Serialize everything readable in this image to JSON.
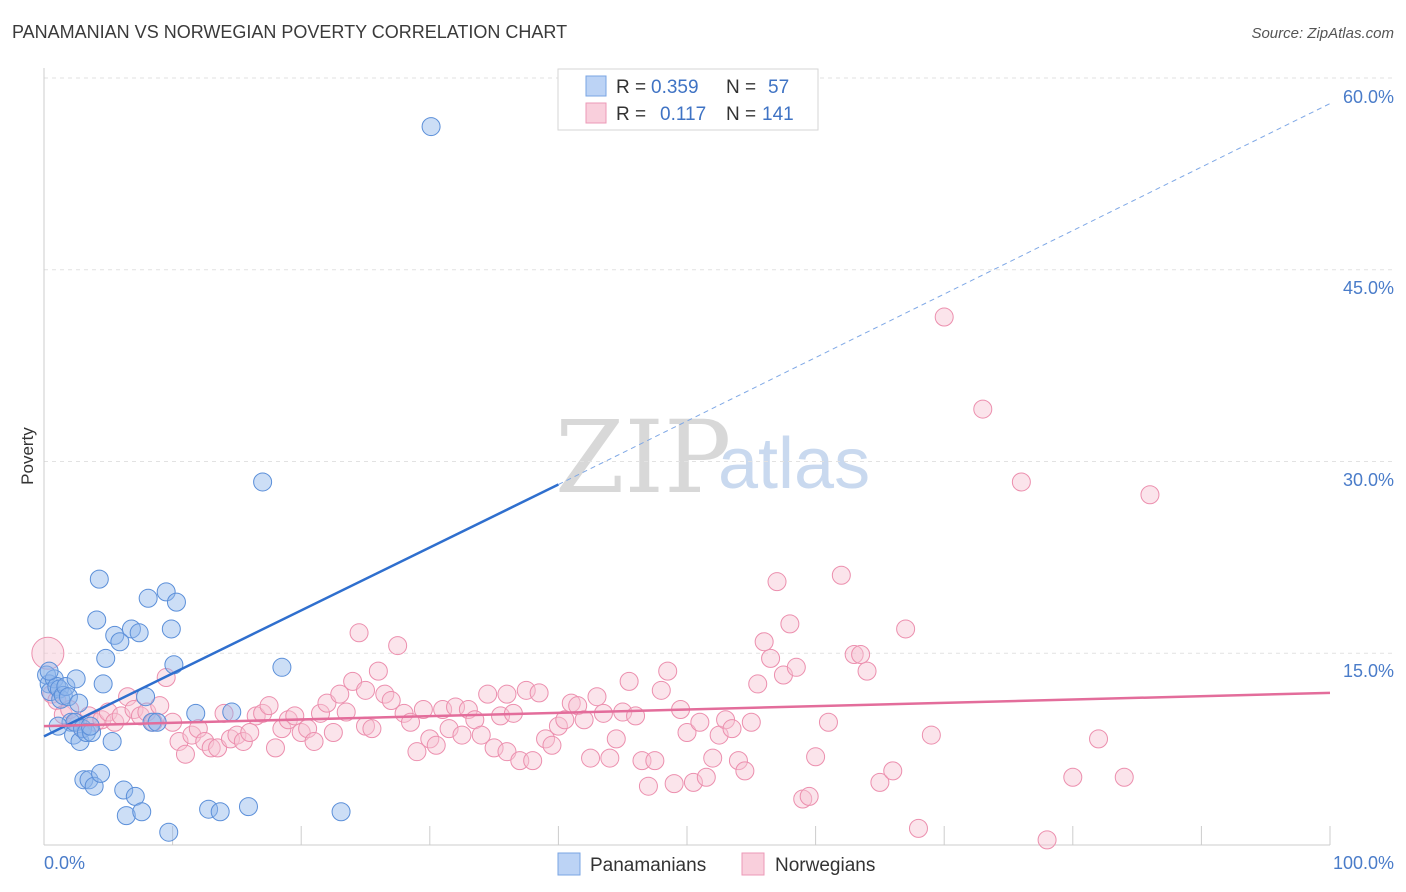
{
  "chart_data": {
    "type": "scatter",
    "title": "PANAMANIAN VS NORWEGIAN POVERTY CORRELATION CHART",
    "source": "Source: ZipAtlas.com",
    "watermark": {
      "zip": "ZIP",
      "atlas": "atlas"
    },
    "ylabel": "Poverty",
    "xlim": [
      0,
      100
    ],
    "ylim": [
      0,
      60
    ],
    "x_tick_labels": {
      "min": "0.0%",
      "max": "100.0%"
    },
    "y_ticks": [
      {
        "value": 15,
        "label": "15.0%"
      },
      {
        "value": 30,
        "label": "30.0%"
      },
      {
        "value": 45,
        "label": "45.0%"
      },
      {
        "value": 60,
        "label": "60.0%"
      }
    ],
    "grid": true,
    "legend_stats": [
      {
        "r_label": "R =",
        "r_value": "0.359",
        "n_label": "N =",
        "n_value": "57",
        "color": "#8fb5ea"
      },
      {
        "r_label": "R =",
        "r_value": "0.117",
        "n_label": "N =",
        "n_value": "141",
        "color": "#f2a7bf"
      }
    ],
    "series": [
      {
        "name": "Panamanians",
        "color": "#8fb5ea",
        "stroke": "#5b8fd9",
        "trend": {
          "x0": 0,
          "y0": 8.5,
          "x1": 40,
          "y1": 28.2,
          "dash_x1": 100,
          "dash_y1": 58.0,
          "color": "#2f6fce"
        },
        "points": [
          [
            0.2,
            13.3
          ],
          [
            0.4,
            12.6
          ],
          [
            0.5,
            12.0
          ],
          [
            0.8,
            13.0
          ],
          [
            1.0,
            12.4
          ],
          [
            1.2,
            12.2
          ],
          [
            1.3,
            11.4
          ],
          [
            1.5,
            11.7
          ],
          [
            1.7,
            12.4
          ],
          [
            1.9,
            11.6
          ],
          [
            2.1,
            9.6
          ],
          [
            2.3,
            8.6
          ],
          [
            2.4,
            9.6
          ],
          [
            2.5,
            13.0
          ],
          [
            2.7,
            11.1
          ],
          [
            2.8,
            8.1
          ],
          [
            3.0,
            9.1
          ],
          [
            3.1,
            5.1
          ],
          [
            3.3,
            8.8
          ],
          [
            3.5,
            5.1
          ],
          [
            3.7,
            8.8
          ],
          [
            3.9,
            4.6
          ],
          [
            4.1,
            17.6
          ],
          [
            4.3,
            20.8
          ],
          [
            4.4,
            5.6
          ],
          [
            4.6,
            12.6
          ],
          [
            4.8,
            14.6
          ],
          [
            5.3,
            8.1
          ],
          [
            5.5,
            16.4
          ],
          [
            5.9,
            15.9
          ],
          [
            6.2,
            4.3
          ],
          [
            6.4,
            2.3
          ],
          [
            6.8,
            16.9
          ],
          [
            7.1,
            3.8
          ],
          [
            7.4,
            16.6
          ],
          [
            7.6,
            2.6
          ],
          [
            7.9,
            11.6
          ],
          [
            8.1,
            19.3
          ],
          [
            8.4,
            9.6
          ],
          [
            8.8,
            9.6
          ],
          [
            9.5,
            19.8
          ],
          [
            9.7,
            1.0
          ],
          [
            9.9,
            16.9
          ],
          [
            10.1,
            14.1
          ],
          [
            10.3,
            19.0
          ],
          [
            11.8,
            10.3
          ],
          [
            12.8,
            2.8
          ],
          [
            13.7,
            2.6
          ],
          [
            14.6,
            10.4
          ],
          [
            15.9,
            3.0
          ],
          [
            17.0,
            28.4
          ],
          [
            18.5,
            13.9
          ],
          [
            23.1,
            2.6
          ],
          [
            30.1,
            56.2
          ],
          [
            0.4,
            13.6
          ],
          [
            1.1,
            9.3
          ],
          [
            3.6,
            9.3
          ]
        ]
      },
      {
        "name": "Norwegians",
        "color": "#f7c3d3",
        "stroke": "#ec8fae",
        "trend": {
          "x0": 0,
          "y0": 9.3,
          "x1": 100,
          "y1": 11.9,
          "color": "#e36d9b"
        },
        "points": [
          [
            0.3,
            15.0
          ],
          [
            0.6,
            11.8
          ],
          [
            1.0,
            11.3
          ],
          [
            1.5,
            10.2
          ],
          [
            2.0,
            10.6
          ],
          [
            2.5,
            9.6
          ],
          [
            3.0,
            9.1
          ],
          [
            3.5,
            10.1
          ],
          [
            4.0,
            9.6
          ],
          [
            4.5,
            9.8
          ],
          [
            5.0,
            10.4
          ],
          [
            5.5,
            9.6
          ],
          [
            6.0,
            10.1
          ],
          [
            6.5,
            11.6
          ],
          [
            7.0,
            10.6
          ],
          [
            7.5,
            10.1
          ],
          [
            8.0,
            10.4
          ],
          [
            8.5,
            9.6
          ],
          [
            9.0,
            10.9
          ],
          [
            9.5,
            13.1
          ],
          [
            10.0,
            9.6
          ],
          [
            10.5,
            8.1
          ],
          [
            11.0,
            7.1
          ],
          [
            11.5,
            8.6
          ],
          [
            12.0,
            9.1
          ],
          [
            12.5,
            8.1
          ],
          [
            13.0,
            7.6
          ],
          [
            13.5,
            7.6
          ],
          [
            14.0,
            10.3
          ],
          [
            14.5,
            8.3
          ],
          [
            15.0,
            8.6
          ],
          [
            15.5,
            8.1
          ],
          [
            16.0,
            8.8
          ],
          [
            16.5,
            10.1
          ],
          [
            17.0,
            10.3
          ],
          [
            17.5,
            10.9
          ],
          [
            18.0,
            7.6
          ],
          [
            18.5,
            9.1
          ],
          [
            19.0,
            9.8
          ],
          [
            19.5,
            10.1
          ],
          [
            20.0,
            8.8
          ],
          [
            20.5,
            9.1
          ],
          [
            21.0,
            8.1
          ],
          [
            21.5,
            10.3
          ],
          [
            22.0,
            11.1
          ],
          [
            22.5,
            8.8
          ],
          [
            23.0,
            11.8
          ],
          [
            23.5,
            10.4
          ],
          [
            24.0,
            12.8
          ],
          [
            24.5,
            16.6
          ],
          [
            25.0,
            9.3
          ],
          [
            25.5,
            9.1
          ],
          [
            26.0,
            13.6
          ],
          [
            26.5,
            11.8
          ],
          [
            27.0,
            11.3
          ],
          [
            27.5,
            15.6
          ],
          [
            28.0,
            10.3
          ],
          [
            28.5,
            9.6
          ],
          [
            29.0,
            7.3
          ],
          [
            29.5,
            10.6
          ],
          [
            30.0,
            8.3
          ],
          [
            30.5,
            7.8
          ],
          [
            31.0,
            10.6
          ],
          [
            31.5,
            9.1
          ],
          [
            32.0,
            10.8
          ],
          [
            32.5,
            8.6
          ],
          [
            33.0,
            10.6
          ],
          [
            33.5,
            9.8
          ],
          [
            34.0,
            8.6
          ],
          [
            34.5,
            11.8
          ],
          [
            35.0,
            7.6
          ],
          [
            35.5,
            10.1
          ],
          [
            36.0,
            7.3
          ],
          [
            36.5,
            10.3
          ],
          [
            37.0,
            6.6
          ],
          [
            37.5,
            12.1
          ],
          [
            38.0,
            6.6
          ],
          [
            38.5,
            11.9
          ],
          [
            39.0,
            8.3
          ],
          [
            39.5,
            7.8
          ],
          [
            40.0,
            9.3
          ],
          [
            40.5,
            9.8
          ],
          [
            41.0,
            11.1
          ],
          [
            41.5,
            10.9
          ],
          [
            42.0,
            9.8
          ],
          [
            42.5,
            6.8
          ],
          [
            43.0,
            11.6
          ],
          [
            43.5,
            10.3
          ],
          [
            44.0,
            6.8
          ],
          [
            44.5,
            8.3
          ],
          [
            45.0,
            10.4
          ],
          [
            45.5,
            12.8
          ],
          [
            46.0,
            10.1
          ],
          [
            46.5,
            6.6
          ],
          [
            47.0,
            4.6
          ],
          [
            47.5,
            6.6
          ],
          [
            48.0,
            12.1
          ],
          [
            48.5,
            13.6
          ],
          [
            49.0,
            4.8
          ],
          [
            49.5,
            10.6
          ],
          [
            50.0,
            8.8
          ],
          [
            50.5,
            4.9
          ],
          [
            51.0,
            9.6
          ],
          [
            51.5,
            5.3
          ],
          [
            52.0,
            6.8
          ],
          [
            52.5,
            8.6
          ],
          [
            53.0,
            9.8
          ],
          [
            53.5,
            9.1
          ],
          [
            54.0,
            6.6
          ],
          [
            54.5,
            5.8
          ],
          [
            55.0,
            9.6
          ],
          [
            55.5,
            12.6
          ],
          [
            56.0,
            15.9
          ],
          [
            56.5,
            14.6
          ],
          [
            57.0,
            20.6
          ],
          [
            57.5,
            13.3
          ],
          [
            58.0,
            17.3
          ],
          [
            58.5,
            13.9
          ],
          [
            59.0,
            3.6
          ],
          [
            59.5,
            3.8
          ],
          [
            60.0,
            6.9
          ],
          [
            61.0,
            9.6
          ],
          [
            62.0,
            21.1
          ],
          [
            63.0,
            14.9
          ],
          [
            64.0,
            13.6
          ],
          [
            65.0,
            4.9
          ],
          [
            66.0,
            5.8
          ],
          [
            67.0,
            16.9
          ],
          [
            68.0,
            1.3
          ],
          [
            69.0,
            8.6
          ],
          [
            70.0,
            41.3
          ],
          [
            73.0,
            34.1
          ],
          [
            76.0,
            28.4
          ],
          [
            78.0,
            0.4
          ],
          [
            80.0,
            5.3
          ],
          [
            82.0,
            8.3
          ],
          [
            84.0,
            5.3
          ],
          [
            86.0,
            27.4
          ],
          [
            25.0,
            12.1
          ],
          [
            63.5,
            14.9
          ],
          [
            36.0,
            11.8
          ]
        ]
      }
    ]
  }
}
